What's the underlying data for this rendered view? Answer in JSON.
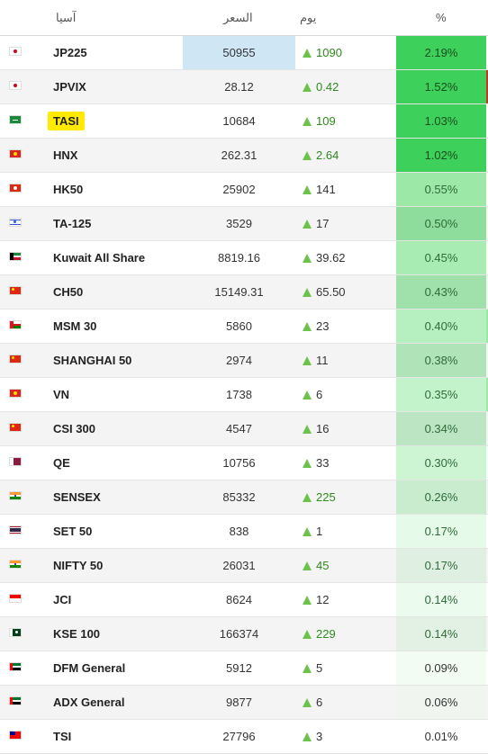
{
  "header": {
    "name": "آسيا",
    "price": "السعر",
    "change": "يوم",
    "pct": "%"
  },
  "rows": [
    {
      "name": "JP225",
      "price": "50955",
      "change": "1090",
      "pct": "2.19%",
      "flag": "japan-flag-icon",
      "pct_bg": "#3dd05a",
      "pct_color": "#1a4d1f",
      "change_green": true,
      "price_selected": true,
      "edge": ""
    },
    {
      "name": "JPVIX",
      "price": "28.12",
      "change": "0.42",
      "pct": "1.52%",
      "flag": "japan-flag-icon",
      "pct_bg": "#3dd05a",
      "pct_color": "#1a4d1f",
      "change_green": true,
      "edge": "#c0392b"
    },
    {
      "name": "TASI",
      "price": "10684",
      "change": "109",
      "pct": "1.03%",
      "flag": "saudi-flag-icon",
      "pct_bg": "#3dd05a",
      "pct_color": "#1a4d1f",
      "change_green": true,
      "highlight": true,
      "edge": ""
    },
    {
      "name": "HNX",
      "price": "262.31",
      "change": "2.64",
      "pct": "1.02%",
      "flag": "vietnam-flag-icon",
      "pct_bg": "#3dd05a",
      "pct_color": "#1a4d1f",
      "change_green": true,
      "edge": ""
    },
    {
      "name": "HK50",
      "price": "25902",
      "change": "141",
      "pct": "0.55%",
      "flag": "hongkong-flag-icon",
      "pct_bg": "#9ce8a7",
      "pct_color": "#2f6b38",
      "change_green": false,
      "edge": ""
    },
    {
      "name": "TA-125",
      "price": "3529",
      "change": "17",
      "pct": "0.50%",
      "flag": "israel-flag-icon",
      "pct_bg": "#8fdd9c",
      "pct_color": "#2f6b38",
      "change_green": false,
      "edge": ""
    },
    {
      "name": "Kuwait All Share",
      "price": "8819.16",
      "change": "39.62",
      "pct": "0.45%",
      "flag": "kuwait-flag-icon",
      "pct_bg": "#a8ecb3",
      "pct_color": "#2f6b38",
      "change_green": false,
      "edge": ""
    },
    {
      "name": "CH50",
      "price": "15149.31",
      "change": "65.50",
      "pct": "0.43%",
      "flag": "china-flag-icon",
      "pct_bg": "#a0e0ab",
      "pct_color": "#2f6b38",
      "change_green": false,
      "edge": ""
    },
    {
      "name": "MSM 30",
      "price": "5860",
      "change": "23",
      "pct": "0.40%",
      "flag": "oman-flag-icon",
      "pct_bg": "#b6f0c0",
      "pct_color": "#2f6b38",
      "change_green": false,
      "edge": "#9ce8a7"
    },
    {
      "name": "SHANGHAI 50",
      "price": "2974",
      "change": "11",
      "pct": "0.38%",
      "flag": "china-flag-icon",
      "pct_bg": "#b1e3b9",
      "pct_color": "#2f6b38",
      "change_green": false,
      "edge": ""
    },
    {
      "name": "VN",
      "price": "1738",
      "change": "6",
      "pct": "0.35%",
      "flag": "vietnam-flag-icon",
      "pct_bg": "#c2f3ca",
      "pct_color": "#2f6b38",
      "change_green": false,
      "edge": "#9ce8a7"
    },
    {
      "name": "CSI 300",
      "price": "4547",
      "change": "16",
      "pct": "0.34%",
      "flag": "china-flag-icon",
      "pct_bg": "#bce6c3",
      "pct_color": "#2f6b38",
      "change_green": false,
      "edge": ""
    },
    {
      "name": "QE",
      "price": "10756",
      "change": "33",
      "pct": "0.30%",
      "flag": "qatar-flag-icon",
      "pct_bg": "#cdf5d3",
      "pct_color": "#2f6b38",
      "change_green": false,
      "edge": ""
    },
    {
      "name": "SENSEX",
      "price": "85332",
      "change": "225",
      "pct": "0.26%",
      "flag": "india-flag-icon",
      "pct_bg": "#c9ebce",
      "pct_color": "#2f6b38",
      "change_green": true,
      "edge": ""
    },
    {
      "name": "SET 50",
      "price": "838",
      "change": "1",
      "pct": "0.17%",
      "flag": "thailand-flag-icon",
      "pct_bg": "#e6fae9",
      "pct_color": "#2f6b38",
      "change_green": false,
      "edge": ""
    },
    {
      "name": "NIFTY 50",
      "price": "26031",
      "change": "45",
      "pct": "0.17%",
      "flag": "india-flag-icon",
      "pct_bg": "#dff0e2",
      "pct_color": "#2f6b38",
      "change_green": true,
      "edge": ""
    },
    {
      "name": "JCI",
      "price": "8624",
      "change": "12",
      "pct": "0.14%",
      "flag": "indonesia-flag-icon",
      "pct_bg": "#ebfbee",
      "pct_color": "#2f6b38",
      "change_green": false,
      "edge": ""
    },
    {
      "name": "KSE 100",
      "price": "166374",
      "change": "229",
      "pct": "0.14%",
      "flag": "pakistan-flag-icon",
      "pct_bg": "#e2f1e4",
      "pct_color": "#2f6b38",
      "change_green": true,
      "edge": ""
    },
    {
      "name": "DFM General",
      "price": "5912",
      "change": "5",
      "pct": "0.09%",
      "flag": "uae-flag-icon",
      "pct_bg": "#f2fcf3",
      "pct_color": "#333",
      "change_green": false,
      "edge": ""
    },
    {
      "name": "ADX General",
      "price": "9877",
      "change": "6",
      "pct": "0.06%",
      "flag": "uae-flag-icon",
      "pct_bg": "#f0f5f0",
      "pct_color": "#333",
      "change_green": false,
      "edge": ""
    },
    {
      "name": "TSI",
      "price": "27796",
      "change": "3",
      "pct": "0.01%",
      "flag": "taiwan-flag-icon",
      "pct_bg": "#ffffff",
      "pct_color": "#333",
      "change_green": false,
      "edge": ""
    }
  ]
}
